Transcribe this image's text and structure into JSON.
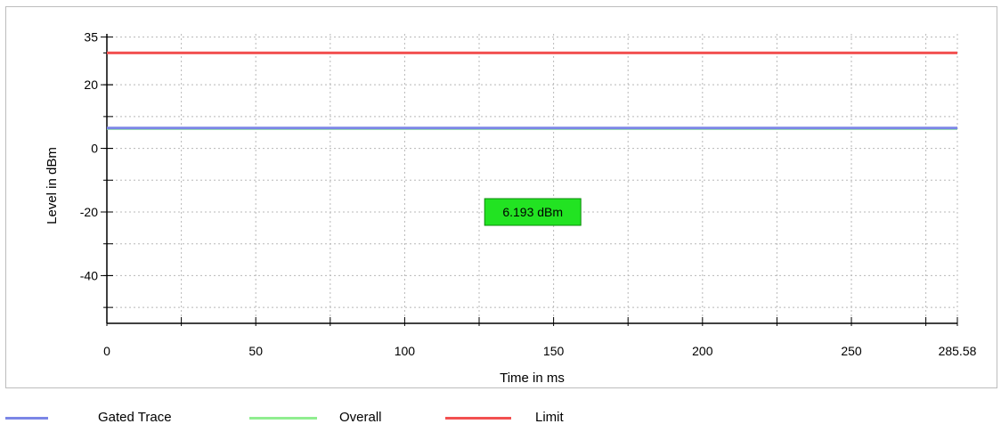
{
  "colors": {
    "gated_trace": "#7b86e6",
    "overall": "#90ee90",
    "limit": "#f25050",
    "marker_bg": "#22e322"
  },
  "chart_data": {
    "type": "line",
    "xlabel": "Time in ms",
    "ylabel": "Level in dBm",
    "xlim": [
      0,
      285.58
    ],
    "ylim": [
      -55,
      36
    ],
    "x_ticks": [
      0,
      50,
      100,
      150,
      200,
      250,
      285.58
    ],
    "x_tick_labels": [
      "0",
      "50",
      "100",
      "150",
      "200",
      "250",
      "285.58"
    ],
    "y_ticks": [
      35,
      20,
      0,
      -20,
      -40
    ],
    "y_tick_labels": [
      "35",
      "20",
      "0",
      "-20",
      "-40"
    ],
    "grid": true,
    "legend_position": "bottom",
    "series": [
      {
        "name": "Gated Trace",
        "color": "#7b86e6",
        "x": [
          0,
          285.58
        ],
        "y": [
          6.4,
          6.4
        ]
      },
      {
        "name": "Overall",
        "color": "#90ee90",
        "x": [
          0,
          285.58
        ],
        "y": [
          6.2,
          6.2
        ]
      },
      {
        "name": "Limit",
        "color": "#f25050",
        "x": [
          0,
          285.58
        ],
        "y": [
          30,
          30
        ]
      }
    ],
    "annotation": {
      "text": "6.193 dBm",
      "x": 143,
      "y": -20
    }
  },
  "legend": [
    {
      "label": "Gated Trace",
      "color": "#7b86e6"
    },
    {
      "label": "Overall",
      "color": "#90ee90"
    },
    {
      "label": "Limit",
      "color": "#f25050"
    }
  ]
}
